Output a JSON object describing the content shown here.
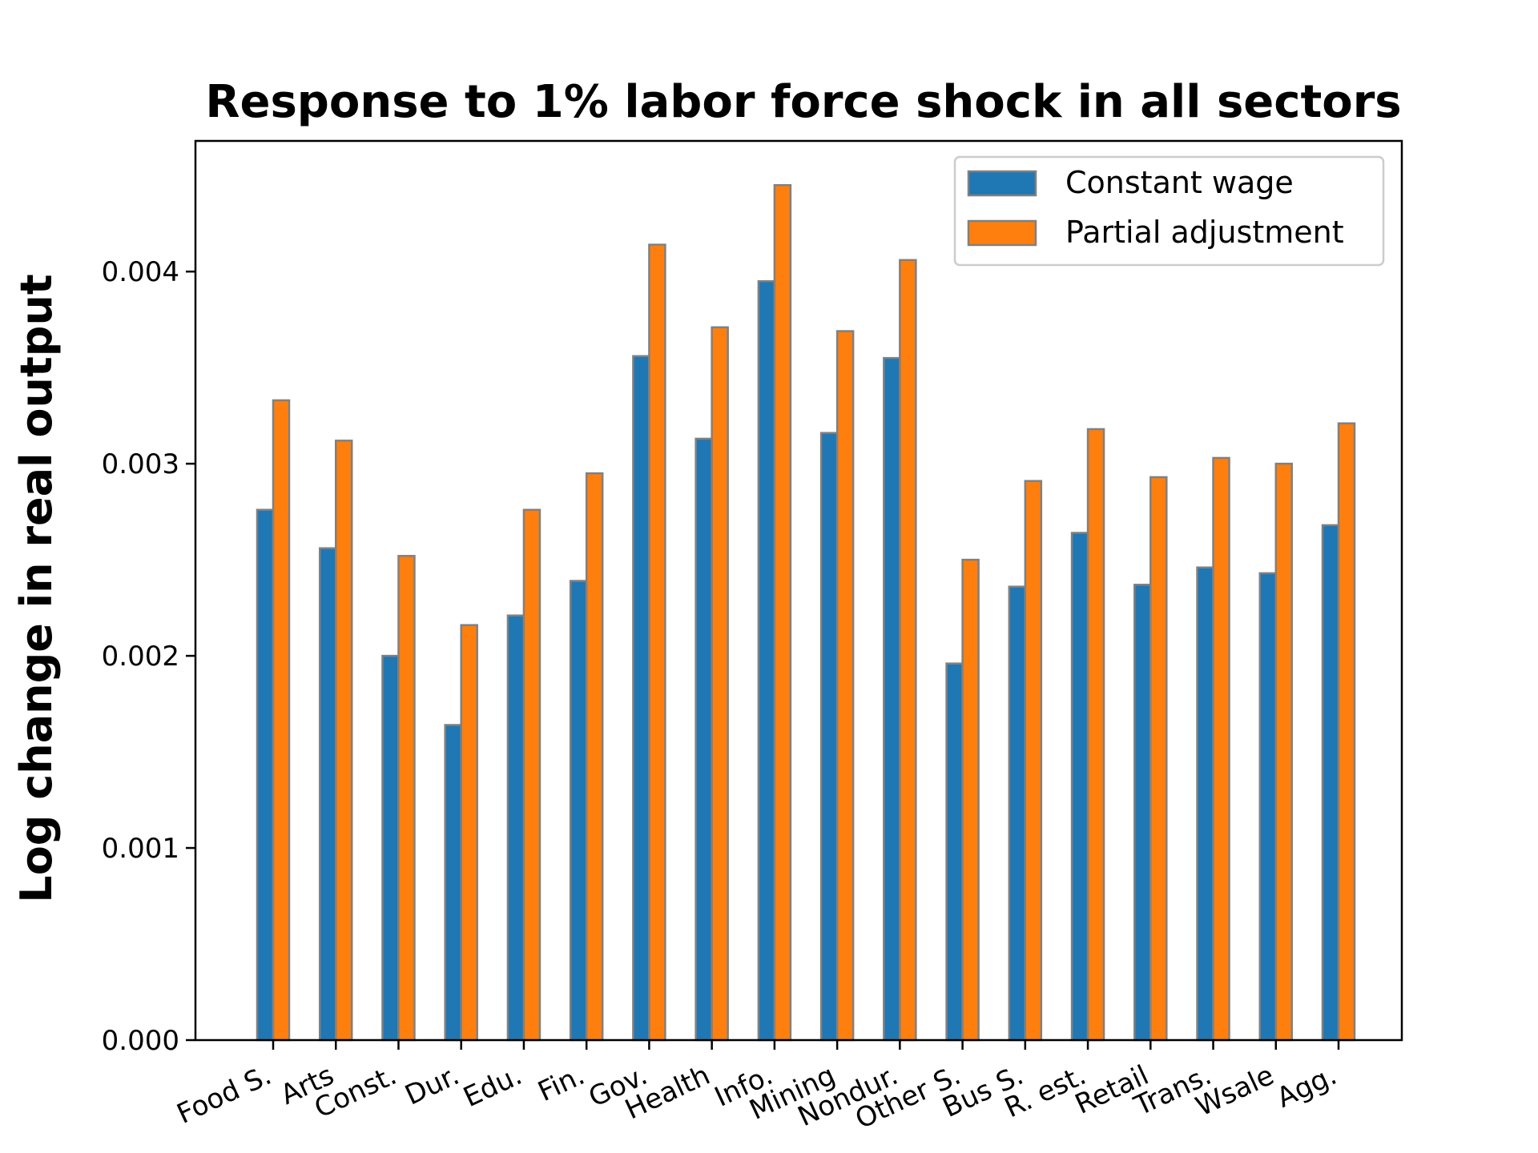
{
  "chart_data": {
    "type": "bar",
    "title": "Response to 1% labor force shock in all sectors",
    "xlabel": "",
    "ylabel": "Log change in real output",
    "ylim": [
      0,
      0.00468
    ],
    "yticks": [
      "0.000",
      "0.001",
      "0.002",
      "0.003",
      "0.004"
    ],
    "ytick_values": [
      0,
      0.001,
      0.002,
      0.003,
      0.004
    ],
    "categories": [
      "Food S.",
      "Arts",
      "Const.",
      "Dur.",
      "Edu.",
      "Fin.",
      "Gov.",
      "Health",
      "Info.",
      "Mining",
      "Nondur.",
      "Other S.",
      "Bus S.",
      "R. est.",
      "Retail",
      "Trans.",
      "Wsale",
      "Agg."
    ],
    "series": [
      {
        "name": "Constant wage",
        "color": "#1f77b4",
        "values": [
          0.00276,
          0.00256,
          0.002,
          0.00164,
          0.00221,
          0.00239,
          0.00356,
          0.00313,
          0.00395,
          0.00316,
          0.00355,
          0.00196,
          0.00236,
          0.00264,
          0.00237,
          0.00246,
          0.00243,
          0.00268
        ]
      },
      {
        "name": "Partial adjustment",
        "color": "#ff7f0e",
        "values": [
          0.00333,
          0.00312,
          0.00252,
          0.00216,
          0.00276,
          0.00295,
          0.00414,
          0.00371,
          0.00445,
          0.00369,
          0.00406,
          0.0025,
          0.00291,
          0.00318,
          0.00293,
          0.00303,
          0.003,
          0.00321
        ]
      }
    ],
    "bar_edge_color": "#808080",
    "legend_position": "top-right",
    "grid": false
  }
}
